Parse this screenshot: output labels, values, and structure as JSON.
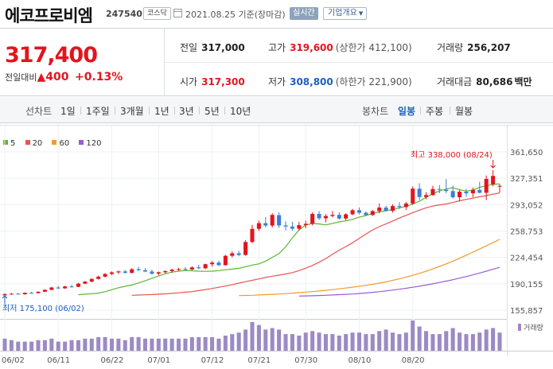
{
  "header": {
    "name": "에코프로비엠",
    "code": "247540",
    "market": "코스닥",
    "date": "2021.08.25 기준(장마감)",
    "live_label": "실시간",
    "corp_label": "기업개요"
  },
  "price": {
    "current": "317,400",
    "change_label": "전일대비",
    "change_amount": "400",
    "change_pct": "+0.13%"
  },
  "stats": {
    "prev_close": {
      "label": "전일",
      "value": "317,000"
    },
    "high": {
      "label": "고가",
      "value": "319,600",
      "sub": "(상한가 412,100)"
    },
    "volume": {
      "label": "거래량",
      "value": "256,207"
    },
    "open": {
      "label": "시가",
      "value": "317,300"
    },
    "low": {
      "label": "저가",
      "value": "308,800",
      "sub": "(하한가 221,900)"
    },
    "amount": {
      "label": "거래대금",
      "value": "80,686",
      "unit": "백만"
    }
  },
  "tabs": {
    "line_label": "선차트",
    "periods": [
      "1일",
      "1주일",
      "3개월",
      "1년",
      "3년",
      "5년",
      "10년"
    ],
    "candle_label": "봉차트",
    "candles": [
      "일봉",
      "주봉",
      "월봉"
    ],
    "active_candle": "일봉"
  },
  "legend": [
    {
      "label": "5",
      "color": "#5cb531"
    },
    {
      "label": "20",
      "color": "#e85454"
    },
    {
      "label": "60",
      "color": "#f39a2c"
    },
    {
      "label": "120",
      "color": "#9b5bd6"
    }
  ],
  "chart_data": {
    "type": "candlestick",
    "y_ticks": [
      "361,650",
      "327,351",
      "293,052",
      "258,753",
      "224,454",
      "190,155",
      "155,857"
    ],
    "ylim": [
      155857,
      361650
    ],
    "x_ticks": [
      "06/02",
      "06/11",
      "06/22",
      "07/01",
      "07/12",
      "07/21",
      "07/30",
      "08/10",
      "08/20"
    ],
    "high_annotation": "최고 338,000 (08/24)",
    "low_annotation": "최저 175,100 (06/02)",
    "volume_label": "거래량",
    "colors": {
      "up": "#e2151e",
      "down": "#3a7fd6",
      "ma5": "#5cb531",
      "ma20": "#e85454",
      "ma60": "#f39a2c",
      "ma120": "#9b5bd6",
      "volume": "#9c8ac4"
    },
    "candles": [
      [
        175100,
        177500,
        175100,
        176800
      ],
      [
        176800,
        178200,
        175800,
        177200
      ],
      [
        177200,
        178000,
        176100,
        176600
      ],
      [
        176500,
        178900,
        176000,
        178400
      ],
      [
        178400,
        179800,
        177400,
        178000
      ],
      [
        178000,
        180400,
        177600,
        179700
      ],
      [
        179800,
        182800,
        179300,
        182300
      ],
      [
        182300,
        186200,
        181600,
        185300
      ],
      [
        185300,
        187300,
        183200,
        184200
      ],
      [
        184200,
        187600,
        183600,
        186700
      ],
      [
        186700,
        188700,
        185100,
        186000
      ],
      [
        186200,
        191200,
        185800,
        190300
      ],
      [
        190300,
        193800,
        189600,
        193000
      ],
      [
        193000,
        197500,
        191900,
        196400
      ],
      [
        196500,
        200600,
        195600,
        199400
      ],
      [
        199400,
        204100,
        198400,
        202900
      ],
      [
        202900,
        206300,
        201500,
        205000
      ],
      [
        205000,
        207300,
        203000,
        206200
      ],
      [
        206200,
        208200,
        203600,
        204400
      ],
      [
        204400,
        210500,
        203400,
        209000
      ],
      [
        209200,
        212200,
        206800,
        207900
      ],
      [
        207800,
        210300,
        205400,
        206100
      ],
      [
        206100,
        208600,
        202000,
        203300
      ],
      [
        203300,
        206100,
        201300,
        205100
      ],
      [
        205100,
        207800,
        203700,
        206600
      ],
      [
        206600,
        209600,
        204400,
        208500
      ],
      [
        208500,
        210900,
        206800,
        209300
      ],
      [
        209300,
        211900,
        207400,
        208700
      ],
      [
        208700,
        212700,
        207700,
        211500
      ],
      [
        211500,
        214700,
        209200,
        210300
      ],
      [
        210300,
        216400,
        209100,
        215600
      ],
      [
        215600,
        219700,
        212500,
        217700
      ],
      [
        217700,
        220000,
        213200,
        214400
      ],
      [
        214400,
        227900,
        213600,
        226500
      ],
      [
        226500,
        232500,
        224300,
        229800
      ],
      [
        229800,
        233100,
        226000,
        227600
      ],
      [
        227600,
        247000,
        226800,
        244500
      ],
      [
        244500,
        266800,
        243100,
        261600
      ],
      [
        261600,
        272300,
        258900,
        269000
      ],
      [
        269000,
        276900,
        263300,
        265900
      ],
      [
        265900,
        282000,
        263300,
        279700
      ],
      [
        279400,
        283100,
        262900,
        266000
      ],
      [
        266000,
        271400,
        259600,
        264600
      ],
      [
        264600,
        270700,
        259300,
        261800
      ],
      [
        261800,
        270800,
        259700,
        266400
      ],
      [
        266400,
        272200,
        262400,
        268100
      ],
      [
        268100,
        283000,
        266100,
        281000
      ],
      [
        281000,
        284700,
        273200,
        275300
      ],
      [
        275300,
        280600,
        270100,
        278300
      ],
      [
        278300,
        284700,
        276600,
        279800
      ],
      [
        279800,
        283200,
        273500,
        275000
      ],
      [
        275000,
        281800,
        272600,
        280500
      ],
      [
        280500,
        287600,
        279200,
        285800
      ],
      [
        285800,
        289400,
        280300,
        282500
      ],
      [
        282500,
        284300,
        278000,
        279600
      ],
      [
        279600,
        286100,
        278400,
        284700
      ],
      [
        284700,
        294600,
        281700,
        289300
      ],
      [
        289300,
        291600,
        283900,
        285100
      ],
      [
        285100,
        293600,
        282700,
        291200
      ],
      [
        291200,
        296300,
        287500,
        289900
      ],
      [
        289900,
        296800,
        286100,
        294500
      ],
      [
        294500,
        316700,
        292700,
        313800
      ],
      [
        313800,
        320800,
        298900,
        303000
      ],
      [
        303000,
        309300,
        299900,
        305500
      ],
      [
        305500,
        317700,
        304700,
        313400
      ],
      [
        313400,
        318400,
        307900,
        312400
      ],
      [
        312400,
        326300,
        308000,
        310700
      ],
      [
        310700,
        317600,
        300900,
        302700
      ],
      [
        302700,
        312500,
        297400,
        309900
      ],
      [
        309900,
        313300,
        303100,
        307800
      ],
      [
        307800,
        315400,
        302700,
        312300
      ],
      [
        312300,
        322700,
        307500,
        308500
      ],
      [
        308500,
        330900,
        298800,
        326500
      ],
      [
        319600,
        338000,
        316900,
        330400
      ],
      [
        317300,
        319600,
        308800,
        317400
      ]
    ],
    "ma5": [
      175900,
      176600,
      177300,
      178000,
      179800,
      182400,
      185000,
      186900,
      188500,
      191200,
      194000,
      197300,
      200200,
      203100,
      205300,
      206500,
      207500,
      207000,
      206500,
      206300,
      206500,
      207300,
      208400,
      209200,
      210300,
      212300,
      214500,
      216000,
      219600,
      224500,
      229400,
      238200,
      249800,
      260100,
      266500,
      268700,
      268000,
      266700,
      268700,
      270600,
      272000,
      274000,
      276700,
      278900,
      281600,
      283600,
      285200,
      286500,
      288800,
      290900,
      293800,
      297400,
      302600,
      307300,
      310800,
      313400,
      315100,
      312400,
      310800,
      311900,
      315500,
      317800,
      319400,
      320100
    ],
    "ma20": [
      175200,
      175500,
      175800,
      176100,
      176600,
      177100,
      177700,
      178400,
      179200,
      180000,
      181300,
      182600,
      184000,
      185600,
      187200,
      189100,
      191000,
      192900,
      194600,
      196500,
      198400,
      200000,
      201400,
      202900,
      204700,
      207300,
      210500,
      214000,
      218200,
      223000,
      228500,
      233900,
      238500,
      243600,
      249100,
      254800,
      260200,
      264400,
      268000,
      271800,
      275600,
      279100,
      282600,
      285800,
      288900,
      291200,
      292800,
      293900,
      295900,
      298100,
      299900,
      301600,
      303300,
      304900,
      306600,
      308300
    ],
    "ma60": [
      174800,
      175000,
      175200,
      175600,
      176000,
      176400,
      176900,
      177400,
      178000,
      178600,
      179300,
      180000,
      180800,
      181600,
      182500,
      183600,
      184600,
      185700,
      186900,
      188100,
      189500,
      191000,
      192700,
      194600,
      196600,
      198800,
      201200,
      203700,
      206500,
      209500,
      212700,
      216000,
      219600,
      223400,
      227300,
      231300,
      235400,
      239500,
      243700,
      248000
    ],
    "ma120": [
      174200,
      174400,
      174600,
      174900,
      175200,
      175600,
      176000,
      176400,
      176900,
      177500,
      178200,
      179000,
      179900,
      180900,
      182000,
      183100,
      184300,
      185600,
      187000,
      188500,
      190100,
      191800,
      193600,
      195500,
      197500,
      199600,
      201800,
      204100,
      206500,
      209000,
      211600
    ],
    "volume": [
      40,
      35,
      30,
      30,
      30,
      35,
      35,
      40,
      30,
      30,
      35,
      35,
      40,
      40,
      45,
      45,
      40,
      40,
      35,
      45,
      45,
      40,
      40,
      40,
      40,
      40,
      40,
      40,
      45,
      45,
      45,
      45,
      40,
      50,
      55,
      60,
      70,
      95,
      85,
      70,
      75,
      70,
      55,
      55,
      50,
      60,
      65,
      60,
      55,
      55,
      50,
      55,
      60,
      60,
      55,
      55,
      65,
      70,
      60,
      55,
      60,
      100,
      80,
      65,
      55,
      55,
      65,
      75,
      60,
      55,
      55,
      60,
      70,
      75,
      60
    ]
  }
}
